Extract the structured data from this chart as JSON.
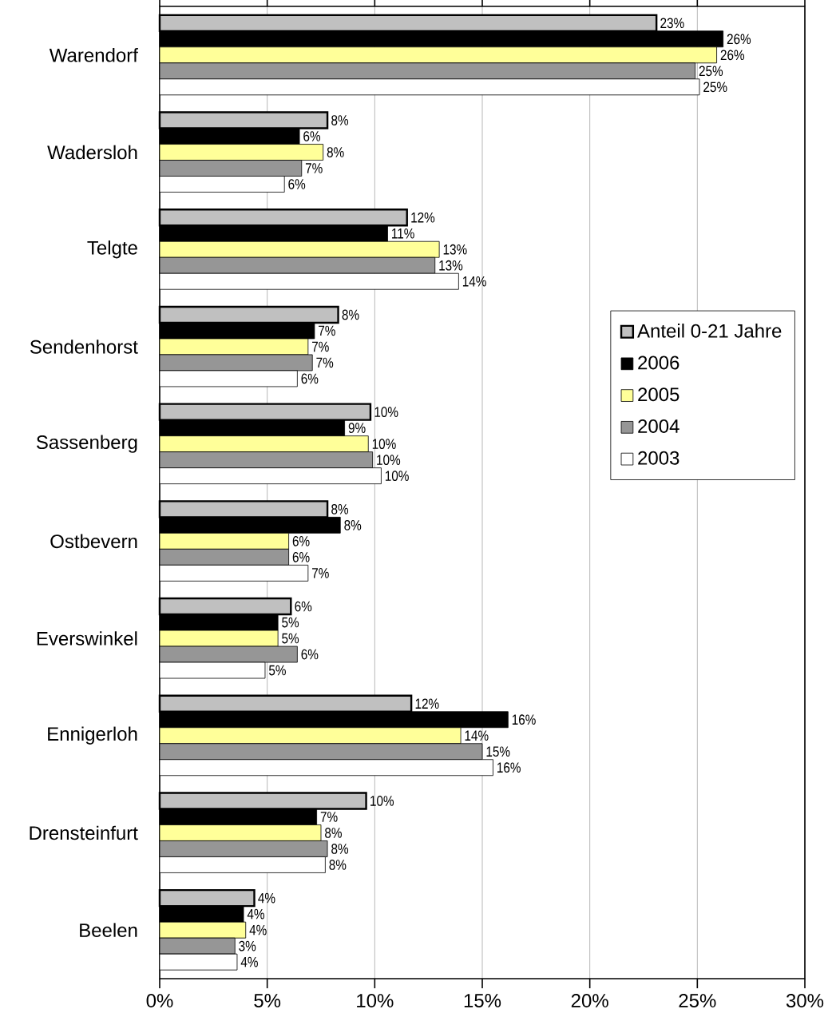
{
  "chart_data": {
    "type": "bar",
    "orientation": "horizontal",
    "categories": [
      "Warendorf",
      "Wadersloh",
      "Telgte",
      "Sendenhorst",
      "Sassenberg",
      "Ostbevern",
      "Everswinkel",
      "Ennigerloh",
      "Drensteinfurt",
      "Beelen"
    ],
    "series": [
      {
        "name": "Anteil 0-21 Jahre",
        "color": "#c0c0c0",
        "values": [
          23.1,
          7.8,
          11.5,
          8.3,
          9.8,
          7.8,
          6.1,
          11.7,
          9.6,
          4.4
        ],
        "value_labels": [
          "23%",
          "8%",
          "12%",
          "8%",
          "10%",
          "8%",
          "6%",
          "12%",
          "10%",
          "4%"
        ]
      },
      {
        "name": "2006",
        "color": "#000000",
        "values": [
          26.2,
          6.5,
          10.6,
          7.2,
          8.6,
          8.4,
          5.5,
          16.2,
          7.3,
          3.9
        ],
        "value_labels": [
          "26%",
          "6%",
          "11%",
          "7%",
          "9%",
          "8%",
          "5%",
          "16%",
          "7%",
          "4%"
        ]
      },
      {
        "name": "2005",
        "color": "#ffff99",
        "values": [
          25.9,
          7.6,
          13.0,
          6.9,
          9.7,
          6.0,
          5.5,
          14.0,
          7.5,
          4.0
        ],
        "value_labels": [
          "26%",
          "8%",
          "13%",
          "7%",
          "10%",
          "6%",
          "5%",
          "14%",
          "8%",
          "4%"
        ]
      },
      {
        "name": "2004",
        "color": "#969696",
        "values": [
          24.9,
          6.6,
          12.8,
          7.1,
          9.9,
          6.0,
          6.4,
          15.0,
          7.8,
          3.5
        ],
        "value_labels": [
          "25%",
          "7%",
          "13%",
          "7%",
          "10%",
          "6%",
          "6%",
          "15%",
          "8%",
          "3%"
        ]
      },
      {
        "name": "2003",
        "color": "#ffffff",
        "values": [
          25.1,
          5.8,
          13.9,
          6.4,
          10.3,
          6.9,
          4.9,
          15.5,
          7.7,
          3.6
        ],
        "value_labels": [
          "25%",
          "6%",
          "14%",
          "6%",
          "10%",
          "7%",
          "5%",
          "16%",
          "8%",
          "4%"
        ]
      }
    ],
    "xlim": [
      0,
      30
    ],
    "xticks": [
      {
        "value": 0,
        "label": "0%"
      },
      {
        "value": 5,
        "label": "5%"
      },
      {
        "value": 10,
        "label": "10%"
      },
      {
        "value": 15,
        "label": "15%"
      },
      {
        "value": 20,
        "label": "20%"
      },
      {
        "value": 25,
        "label": "25%"
      },
      {
        "value": 30,
        "label": "30%"
      }
    ],
    "grid": "x",
    "legend": "right"
  }
}
